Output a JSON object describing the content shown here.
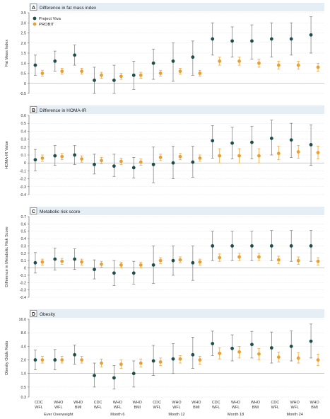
{
  "legend": [
    {
      "name": "Project Viva",
      "color": "#1f4e4a"
    },
    {
      "name": "PROBIT",
      "color": "#e8a033"
    }
  ],
  "groups": [
    "Ever Overweight",
    "Month 6",
    "Month 12",
    "Month 18",
    "Month 24"
  ],
  "measures": [
    {
      "l1": "CDC",
      "l2": "WFL"
    },
    {
      "l1": "WHO",
      "l2": "WFL"
    },
    {
      "l1": "WHO",
      "l2": "BMI"
    }
  ],
  "chart_data": [
    {
      "type": "scatter",
      "letter": "A",
      "title": "Difference in fat mass index",
      "ylabel": "Fat Mass Index",
      "ylim": [
        -0.5,
        3.5
      ],
      "yticks": [
        "-0.5",
        "0",
        "0.5",
        "1.0",
        "1.5",
        "2.0",
        "2.5",
        "3.0",
        "3.5"
      ],
      "ytick_values": [
        -0.5,
        0,
        0.5,
        1.0,
        1.5,
        2.0,
        2.5,
        3.0,
        3.5
      ],
      "scale": "linear",
      "show_legend": true,
      "series": [
        {
          "name": "Project Viva",
          "values": [
            0.9,
            1.1,
            1.4,
            0.15,
            0.15,
            0.4,
            1.0,
            1.1,
            1.3,
            2.2,
            2.1,
            2.1,
            2.2,
            2.2,
            2.4
          ],
          "lower": [
            0.4,
            0.6,
            0.9,
            -0.5,
            -0.6,
            -0.3,
            0.2,
            0.1,
            0.4,
            1.4,
            1.3,
            1.2,
            1.3,
            1.4,
            1.5
          ],
          "upper": [
            1.4,
            1.6,
            1.9,
            0.8,
            0.9,
            1.1,
            1.7,
            2.0,
            2.1,
            3.0,
            2.8,
            2.9,
            3.0,
            3.0,
            3.3
          ]
        },
        {
          "name": "PROBIT",
          "values": [
            0.5,
            0.6,
            0.6,
            0.4,
            0.35,
            0.4,
            0.5,
            0.6,
            0.5,
            1.1,
            1.1,
            1.0,
            0.9,
            0.9,
            0.8
          ],
          "lower": [
            0.35,
            0.45,
            0.45,
            0.25,
            0.2,
            0.25,
            0.35,
            0.45,
            0.35,
            0.9,
            0.9,
            0.8,
            0.7,
            0.7,
            0.6
          ],
          "upper": [
            0.65,
            0.75,
            0.75,
            0.55,
            0.5,
            0.55,
            0.65,
            0.75,
            0.65,
            1.3,
            1.3,
            1.2,
            1.1,
            1.1,
            1.0
          ]
        }
      ]
    },
    {
      "type": "scatter",
      "letter": "B",
      "title": "Difference in HOMA-IR",
      "ylabel": "HOMA-IR Value",
      "ylim": [
        -0.4,
        0.6
      ],
      "yticks": [
        "-0.4",
        "-0.3",
        "-0.2",
        "-0.1",
        "0",
        "0.1",
        "0.2",
        "0.3",
        "0.4",
        "0.5",
        "0.6"
      ],
      "ytick_values": [
        -0.4,
        -0.3,
        -0.2,
        -0.1,
        0,
        0.1,
        0.2,
        0.3,
        0.4,
        0.5,
        0.6
      ],
      "scale": "linear",
      "show_legend": false,
      "series": [
        {
          "name": "Project Viva",
          "values": [
            0.04,
            0.09,
            0.1,
            -0.02,
            -0.04,
            -0.06,
            -0.02,
            0.0,
            0.01,
            0.28,
            0.25,
            0.26,
            0.31,
            0.29,
            0.23
          ],
          "lower": [
            -0.1,
            -0.03,
            -0.02,
            -0.14,
            -0.17,
            -0.19,
            -0.25,
            -0.2,
            -0.18,
            0.06,
            0.05,
            0.05,
            0.1,
            0.07,
            -0.03
          ],
          "upper": [
            0.17,
            0.22,
            0.22,
            0.11,
            0.11,
            0.07,
            0.2,
            0.21,
            0.21,
            0.47,
            0.45,
            0.46,
            0.54,
            0.5,
            0.48
          ]
        },
        {
          "name": "PROBIT",
          "values": [
            0.06,
            0.08,
            0.05,
            0.03,
            0.02,
            0.01,
            0.07,
            0.08,
            0.06,
            0.09,
            0.09,
            0.09,
            0.12,
            0.14,
            0.13
          ],
          "lower": [
            0.02,
            0.04,
            0.01,
            -0.01,
            -0.02,
            -0.03,
            0.03,
            0.04,
            0.02,
            0.0,
            0.0,
            0.0,
            0.04,
            0.06,
            0.05
          ],
          "upper": [
            0.1,
            0.12,
            0.09,
            0.07,
            0.06,
            0.05,
            0.11,
            0.12,
            0.1,
            0.18,
            0.18,
            0.18,
            0.21,
            0.22,
            0.21
          ]
        }
      ]
    },
    {
      "type": "scatter",
      "letter": "C",
      "title": "Metabolic risk score",
      "ylabel": "Difference in Metabolic Risk Score",
      "ylim": [
        -0.4,
        0.7
      ],
      "yticks": [
        "-0.4",
        "-0.3",
        "-0.2",
        "-0.1",
        "0",
        "0.1",
        "0.2",
        "0.3",
        "0.4",
        "0.5",
        "0.6",
        "0.7"
      ],
      "ytick_values": [
        -0.4,
        -0.3,
        -0.2,
        -0.1,
        0,
        0.1,
        0.2,
        0.3,
        0.4,
        0.5,
        0.6,
        0.7
      ],
      "scale": "linear",
      "show_legend": false,
      "series": [
        {
          "name": "Project Viva",
          "values": [
            0.07,
            0.12,
            0.12,
            -0.02,
            -0.07,
            -0.07,
            0.04,
            0.1,
            0.07,
            0.3,
            0.3,
            0.3,
            0.3,
            0.3,
            0.3
          ],
          "lower": [
            -0.07,
            -0.03,
            -0.02,
            -0.15,
            -0.24,
            -0.22,
            -0.21,
            -0.1,
            -0.17,
            0.1,
            0.1,
            0.1,
            0.1,
            0.09,
            0.09
          ],
          "upper": [
            0.21,
            0.27,
            0.26,
            0.11,
            0.1,
            0.09,
            0.3,
            0.3,
            0.3,
            0.5,
            0.5,
            0.5,
            0.51,
            0.51,
            0.51
          ]
        },
        {
          "name": "PROBIT",
          "values": [
            0.08,
            0.09,
            0.08,
            0.05,
            0.04,
            0.04,
            0.1,
            0.11,
            0.08,
            0.14,
            0.15,
            0.15,
            0.11,
            0.1,
            0.09
          ],
          "lower": [
            0.04,
            0.05,
            0.04,
            0.01,
            0.0,
            0.0,
            0.06,
            0.07,
            0.04,
            0.09,
            0.1,
            0.1,
            0.06,
            0.05,
            0.04
          ],
          "upper": [
            0.12,
            0.13,
            0.12,
            0.09,
            0.08,
            0.08,
            0.14,
            0.15,
            0.12,
            0.19,
            0.2,
            0.2,
            0.16,
            0.15,
            0.14
          ]
        }
      ]
    },
    {
      "type": "scatter",
      "letter": "D",
      "title": "Obesity",
      "ylabel": "Obesity Odds Ratio",
      "ylim": [
        0.3,
        16.0
      ],
      "yticks": [
        "0.3",
        "0.5",
        "1.0",
        "2.0",
        "4.0",
        "8.0",
        "16.0"
      ],
      "ytick_values": [
        0.3,
        0.5,
        1.0,
        2.0,
        4.0,
        8.0,
        16.0
      ],
      "scale": "log",
      "show_legend": false,
      "series": [
        {
          "name": "Project Viva",
          "values": [
            2.0,
            2.0,
            2.6,
            0.9,
            0.8,
            1.0,
            1.9,
            2.1,
            2.6,
            4.6,
            3.6,
            4.4,
            3.7,
            4.0,
            5.2
          ],
          "lower": [
            1.2,
            1.2,
            1.6,
            0.5,
            0.45,
            0.5,
            0.9,
            1.0,
            1.3,
            2.5,
            1.9,
            2.2,
            1.7,
            1.9,
            2.2
          ],
          "upper": [
            3.3,
            3.4,
            4.3,
            1.7,
            1.5,
            1.9,
            4.2,
            4.6,
            6.4,
            8.7,
            7.2,
            8.6,
            8.3,
            8.8,
            12.5
          ]
        },
        {
          "name": "PROBIT",
          "values": [
            2.0,
            2.0,
            2.0,
            1.7,
            1.6,
            1.7,
            1.8,
            2.1,
            2.0,
            2.8,
            3.0,
            2.7,
            2.3,
            2.2,
            2.0
          ],
          "lower": [
            1.7,
            1.7,
            1.7,
            1.4,
            1.3,
            1.4,
            1.5,
            1.7,
            1.6,
            2.1,
            2.2,
            2.0,
            1.8,
            1.7,
            1.5
          ],
          "upper": [
            2.4,
            2.4,
            2.4,
            2.1,
            2.0,
            2.1,
            2.2,
            2.5,
            2.4,
            3.7,
            4.0,
            3.6,
            3.0,
            2.9,
            2.7
          ]
        }
      ]
    }
  ]
}
